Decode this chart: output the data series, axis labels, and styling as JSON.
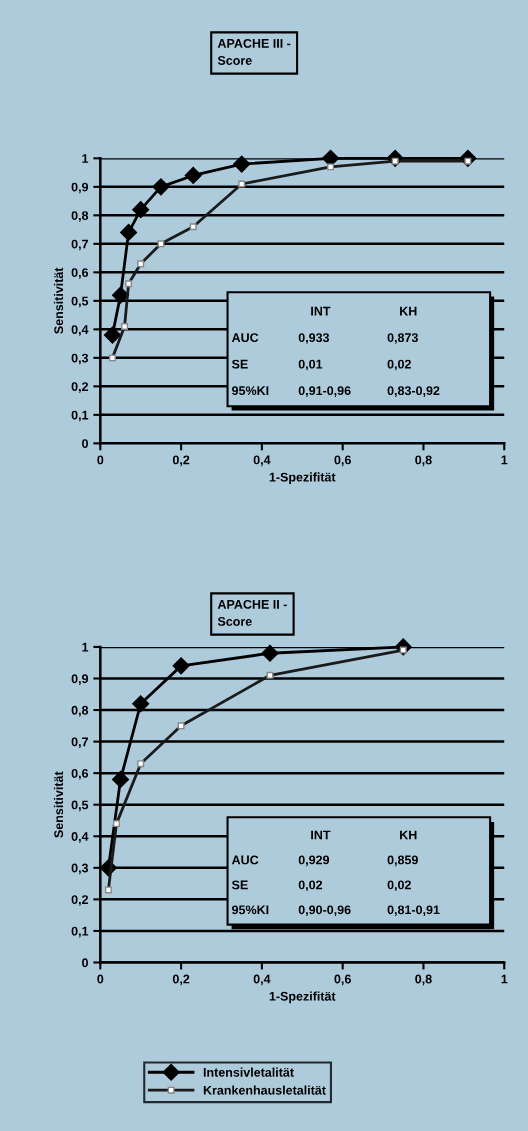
{
  "chart_data": [
    {
      "type": "line",
      "title": "APACHE III -\nScore",
      "xlabel": "1-Spezifität",
      "ylabel": "Sensitivität",
      "xlim": [
        0,
        1
      ],
      "ylim": [
        0,
        1
      ],
      "xticks": [
        0,
        {
          "value": 0.2,
          "label": "0,2"
        },
        {
          "value": 0.4,
          "label": "0,4"
        },
        {
          "value": 0.6,
          "label": "0,6"
        },
        {
          "value": 0.8,
          "label": "0,8"
        },
        1
      ],
      "yticks": [
        0,
        {
          "value": 0.1,
          "label": "0,1"
        },
        {
          "value": 0.2,
          "label": "0,2"
        },
        {
          "value": 0.3,
          "label": "0,3"
        },
        {
          "value": 0.4,
          "label": "0,4"
        },
        {
          "value": 0.5,
          "label": "0,5"
        },
        {
          "value": 0.6,
          "label": "0,6"
        },
        {
          "value": 0.7,
          "label": "0,7"
        },
        {
          "value": 0.8,
          "label": "0,8"
        },
        {
          "value": 0.9,
          "label": "0,9"
        },
        1
      ],
      "grid": "y",
      "legend": false,
      "series": [
        {
          "color": "#000000",
          "marker": "diamond",
          "x": [
            0.03,
            0.05,
            0.07,
            0.1,
            0.15,
            0.23,
            0.35,
            0.57,
            0.73,
            0.91
          ],
          "values": [
            0.38,
            0.52,
            0.74,
            0.82,
            0.9,
            0.94,
            0.98,
            1.0,
            1.0,
            1.0
          ]
        },
        {
          "color": "#1a1a1a",
          "marker": "square",
          "x": [
            0.03,
            0.06,
            0.07,
            0.1,
            0.15,
            0.23,
            0.35,
            0.57,
            0.73,
            0.91
          ],
          "values": [
            0.3,
            0.41,
            0.56,
            0.63,
            0.7,
            0.76,
            0.91,
            0.97,
            0.99,
            0.99
          ]
        }
      ],
      "annotations": [
        "INT",
        "KH",
        "AUC",
        "0,933",
        "0,873",
        "SE",
        "0,01",
        "0,02",
        "95%KI",
        "0,91-0,96",
        "0,83-0,92"
      ]
    },
    {
      "type": "line",
      "title": "APACHE II -\nScore",
      "xlabel": "1-Spezifität",
      "ylabel": "Sensitivität",
      "xlim": [
        0,
        1
      ],
      "ylim": [
        0,
        1
      ],
      "xticks": [
        0,
        {
          "value": 0.2,
          "label": "0,2"
        },
        {
          "value": 0.4,
          "label": "0,4"
        },
        {
          "value": 0.6,
          "label": "0,6"
        },
        {
          "value": 0.8,
          "label": "0,8"
        },
        1
      ],
      "yticks": [
        0,
        {
          "value": 0.1,
          "label": "0,1"
        },
        {
          "value": 0.2,
          "label": "0,2"
        },
        {
          "value": 0.3,
          "label": "0,3"
        },
        {
          "value": 0.4,
          "label": "0,4"
        },
        {
          "value": 0.5,
          "label": "0,5"
        },
        {
          "value": 0.6,
          "label": "0,6"
        },
        {
          "value": 0.7,
          "label": "0,7"
        },
        {
          "value": 0.8,
          "label": "0,8"
        },
        {
          "value": 0.9,
          "label": "0,9"
        },
        1
      ],
      "grid": "y",
      "legend": "bottom",
      "series": [
        {
          "name": "Intensivletalität",
          "color": "#000000",
          "marker": "diamond",
          "x": [
            0.02,
            0.05,
            0.1,
            0.2,
            0.42,
            0.75
          ],
          "values": [
            0.3,
            0.58,
            0.82,
            0.94,
            0.98,
            1.0
          ]
        },
        {
          "name": "Krankenhausletalität",
          "color": "#1a1a1a",
          "marker": "square",
          "x": [
            0.02,
            0.04,
            0.1,
            0.2,
            0.42,
            0.75
          ],
          "values": [
            0.23,
            0.44,
            0.63,
            0.75,
            0.91,
            0.99
          ]
        }
      ],
      "annotations": [
        "INT",
        "KH",
        "AUC",
        "0,929",
        "0,859",
        "SE",
        "0,02",
        "0,02",
        "95%KI",
        "0,90-0,96",
        "0,81-0,91"
      ]
    }
  ]
}
